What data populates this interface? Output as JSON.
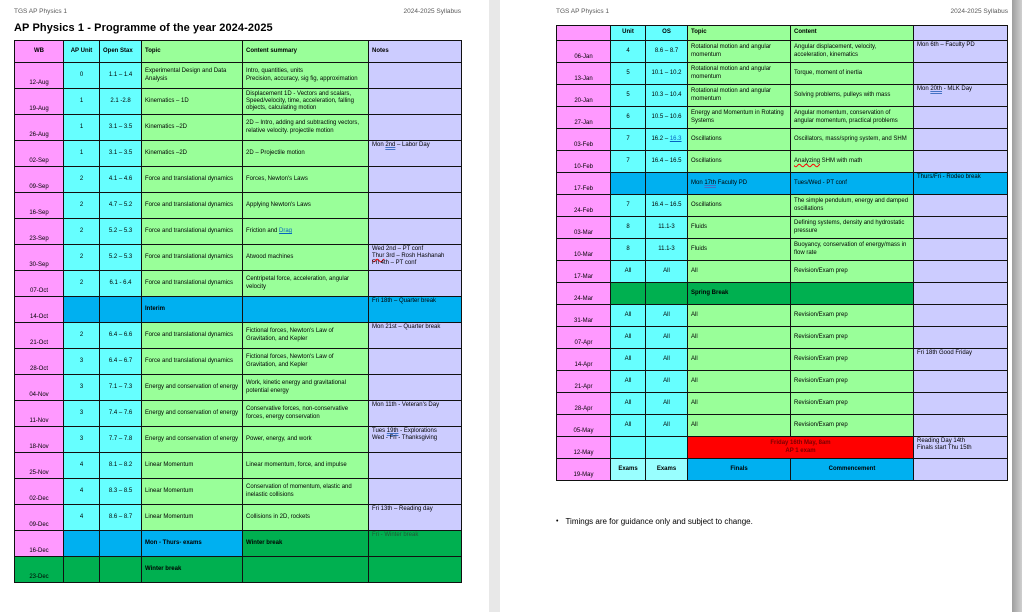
{
  "palette": {
    "pink": "#FF99FF",
    "cyan": "#66FFFF",
    "palecyan": "#99FFFF",
    "green": "#99FF99",
    "lav": "#CCCCFF",
    "blue": "#00B0F0",
    "dkgreen": "#00B050",
    "red": "#FF0000",
    "darkred": "#7B0000",
    "darkgreen": "#215937"
  },
  "pages": [
    {
      "header_left": "TGS AP Physics 1",
      "header_right": "2024-2025 Syllabus",
      "title": "AP Physics 1 - Programme of the year 2024-2025",
      "table": {
        "header": [
          "WB",
          "AP Unit",
          "Open Stax",
          "Topic",
          "Content summary",
          "Notes"
        ],
        "rows": [
          [
            "12-Aug",
            "0",
            "1.1 – 1.4",
            "Experimental Design and Data Analysis",
            "Intro, quantities, units\nPrecision, accuracy, sig fig, approximation",
            ""
          ],
          [
            "19-Aug",
            "1",
            "2.1 -2.8",
            "Kinematics – 1D",
            "Displacement 1D - Vectors and scalars, Speed/velocity, time, acceleration, falling objects, calculating motion",
            ""
          ],
          [
            "26-Aug",
            "1",
            "3.1 – 3.5",
            "Kinematics –2D",
            "2D – Intro, adding and subtracting vectors, relative velocity. projectile motion",
            ""
          ],
          [
            "02-Sep",
            "1",
            "3.1 – 3.5",
            "Kinematics –2D",
            "2D – Projectile motion",
            {
              "segs": [
                {
                  "t": "Mon "
                },
                {
                  "t": "2nd",
                  "s": "gram"
                },
                {
                  "t": " – Labor Day"
                }
              ]
            }
          ],
          [
            "09-Sep",
            "2",
            "4.1 – 4.6",
            "Force and translational dynamics",
            "Forces, Newton's Laws",
            ""
          ],
          [
            "16-Sep",
            "2",
            "4.7 – 5.2",
            "Force and translational dynamics",
            "Applying Newton's Laws",
            ""
          ],
          [
            "23-Sep",
            "2",
            "5.2 – 5.3",
            "Force and translational dynamics",
            {
              "segs": [
                {
                  "t": "Friction and "
                },
                {
                  "t": "Drag",
                  "s": "link"
                }
              ]
            },
            ""
          ],
          [
            "30-Sep",
            "2",
            "5.2 – 5.3",
            "Force and translational dynamics",
            "Atwood machines",
            {
              "segs": [
                {
                  "t": "Wed 2nd – PT conf\n"
                },
                {
                  "t": "Thur",
                  "s": "miss"
                },
                {
                  "t": " 3rd – Rosh Hashanah\nFri 4th – PT conf"
                }
              ]
            }
          ],
          [
            "07-Oct",
            "2",
            "6.1 - 6.4",
            "Force and translational dynamics",
            "Centripetal force, acceleration, angular velocity",
            ""
          ],
          [
            "14-Oct",
            {
              "t": "",
              "bg": "blue"
            },
            {
              "t": "",
              "bg": "blue"
            },
            {
              "t": "Interim",
              "bg": "blue",
              "bold": true
            },
            {
              "t": "",
              "bg": "blue"
            },
            {
              "t": "Fri 18th – Quarter break",
              "bg": "blue"
            }
          ],
          [
            "21-Oct",
            "2",
            "6.4 – 6.6",
            "Force and translational dynamics",
            "Fictional forces, Newton's Law of Gravitation, and Kepler",
            "Mon 21st – Quarter break"
          ],
          [
            "28-Oct",
            "3",
            "6.4 – 6.7",
            "Force and translational dynamics",
            "Fictional forces, Newton's Law of Gravitation, and Kepler",
            ""
          ],
          [
            "04-Nov",
            "3",
            "7.1 – 7.3",
            "Energy and conservation of energy",
            "Work, kinetic energy and gravitational potential energy",
            ""
          ],
          [
            "11-Nov",
            "3",
            "7.4 – 7.6",
            "Energy and conservation of energy",
            "Conservative forces, non-conservative forces, energy conservation",
            "Mon 11th - Veteran's Day"
          ],
          [
            "18-Nov",
            "3",
            "7.7 – 7.8",
            "Energy and conservation of energy",
            "Power, energy, and work",
            {
              "segs": [
                {
                  "t": "Tues "
                },
                {
                  "t": "19th",
                  "s": "gram"
                },
                {
                  "t": " - Explorations\nWed - Fri - Thanksgiving"
                }
              ]
            }
          ],
          [
            "25-Nov",
            "4",
            "8.1 – 8.2",
            "Linear Momentum",
            "Linear momentum, force, and impulse",
            ""
          ],
          [
            "02-Dec",
            "4",
            "8.3 – 8.5",
            "Linear Momentum",
            "Conservation of momentum, elastic and inelastic collisions",
            ""
          ],
          [
            "09-Dec",
            "4",
            "8.6 – 8.7",
            "Linear Momentum",
            "Collisions in 2D, rockets",
            "Fri 13th – Reading day"
          ],
          [
            "16-Dec",
            {
              "t": "",
              "bg": "blue"
            },
            {
              "t": "",
              "bg": "blue"
            },
            {
              "t": "Mon - Thurs- exams",
              "bg": "blue",
              "bold": true
            },
            {
              "t": "Winter break",
              "bg": "dkgreen",
              "bold": true
            },
            {
              "t": "Fri - Winter break",
              "bg": "dkgreen",
              "fg": "darkgreen"
            }
          ],
          [
            {
              "t": "23-Dec",
              "bg": "dkgreen"
            },
            {
              "t": "",
              "bg": "dkgreen"
            },
            {
              "t": "",
              "bg": "dkgreen"
            },
            {
              "t": "Winter break",
              "bg": "dkgreen",
              "bold": true
            },
            {
              "t": "",
              "bg": "dkgreen"
            },
            {
              "t": "",
              "bg": "dkgreen"
            }
          ]
        ]
      }
    },
    {
      "header_left": "TGS AP Physics 1",
      "header_right": "2024-2025 Syllabus",
      "table": {
        "header": [
          "",
          "Unit",
          "OS",
          "Topic",
          "Content",
          ""
        ],
        "rows": [
          [
            "06-Jan",
            "4",
            "8.6 – 8.7",
            "Rotational motion and angular momentum",
            "Angular displacement, velocity, acceleration, kinematics",
            "Mon 6th – Faculty PD"
          ],
          [
            "13-Jan",
            "5",
            "10.1 – 10.2",
            "Rotational motion and angular momentum",
            "Torque, moment of inertia",
            ""
          ],
          [
            "20-Jan",
            "5",
            "10.3 – 10.4",
            "Rotational motion and angular momentum",
            "Solving problems, pulleys with mass",
            {
              "segs": [
                {
                  "t": "Mon "
                },
                {
                  "t": "20th",
                  "s": "gram"
                },
                {
                  "t": " - MLK Day"
                }
              ]
            }
          ],
          [
            "27-Jan",
            "6",
            "10.5 – 10.6",
            "Energy and Momentum in Rotating Systems",
            "Angular momentum, conservation of angular momentum, practical problems",
            ""
          ],
          [
            "03-Feb",
            "7",
            {
              "segs": [
                {
                  "t": "16.2 – "
                },
                {
                  "t": "16.3",
                  "s": "link"
                }
              ]
            },
            "Oscillations",
            "Oscillators, mass/spring system, and SHM",
            ""
          ],
          [
            "10-Feb",
            "7",
            "16.4 – 16.5",
            "Oscillations",
            {
              "segs": [
                {
                  "t": "Analyzing",
                  "s": "miss"
                },
                {
                  "t": " SHM with math"
                }
              ]
            },
            ""
          ],
          [
            "17-Feb",
            {
              "t": "",
              "bg": "blue"
            },
            {
              "t": "",
              "bg": "blue"
            },
            {
              "bg": "blue",
              "segs": [
                {
                  "t": "Mon "
                },
                {
                  "t": "17th",
                  "s": "gram"
                },
                {
                  "t": " Faculty PD"
                }
              ]
            },
            {
              "t": "Tues/Wed - PT conf",
              "bg": "blue"
            },
            {
              "t": "Thurs/Fri - Rodeo break",
              "bg": "blue"
            }
          ],
          [
            "24-Feb",
            "7",
            "16.4 – 16.5",
            "Oscillations",
            "The simple pendulum, energy and damped oscillations",
            ""
          ],
          [
            "03-Mar",
            "8",
            "11.1-3",
            "Fluids",
            "Defining systems, density and hydrostatic pressure",
            ""
          ],
          [
            "10-Mar",
            "8",
            "11.1-3",
            "Fluids",
            "Buoyancy, conservation of energy/mass in flow rate",
            ""
          ],
          [
            "17-Mar",
            "All",
            "All",
            "All",
            "Revision/Exam prep",
            ""
          ],
          [
            "24-Mar",
            {
              "t": "",
              "bg": "dkgreen"
            },
            {
              "t": "",
              "bg": "dkgreen"
            },
            {
              "t": "Spring Break",
              "bg": "dkgreen",
              "bold": true
            },
            {
              "t": "",
              "bg": "dkgreen"
            },
            ""
          ],
          [
            "31-Mar",
            "All",
            "All",
            "All",
            "Revision/Exam prep",
            ""
          ],
          [
            "07-Apr",
            "All",
            "All",
            "All",
            "Revision/Exam prep",
            ""
          ],
          [
            "14-Apr",
            "All",
            "All",
            "All",
            "Revision/Exam prep",
            "Fri 18th Good Friday"
          ],
          [
            "21-Apr",
            "All",
            "All",
            "All",
            "Revision/Exam prep",
            ""
          ],
          [
            "28-Apr",
            "All",
            "All",
            "All",
            "Revision/Exam prep",
            ""
          ],
          [
            "05-May",
            "All",
            "All",
            "All",
            "Revision/Exam prep",
            ""
          ],
          [
            "12-May",
            "",
            "",
            {
              "t": "Friday 16th May, 8am\nAP 1 exam",
              "bg": "red",
              "fg": "darkred",
              "bold": true,
              "align": "center",
              "colspan": 2
            },
            "Reading Day 14th\nFinals start Thu 15th"
          ],
          [
            "19-May",
            {
              "t": "Exams",
              "bg": "palecyan",
              "bold": true
            },
            {
              "t": "Exams",
              "bg": "palecyan",
              "bold": true
            },
            {
              "t": "Finals",
              "bg": "blue",
              "bold": true,
              "align": "center"
            },
            {
              "t": "Commencement",
              "bg": "blue",
              "bold": true,
              "align": "center"
            },
            ""
          ]
        ]
      },
      "footnote": "Timings are for guidance only and subject to change."
    }
  ]
}
